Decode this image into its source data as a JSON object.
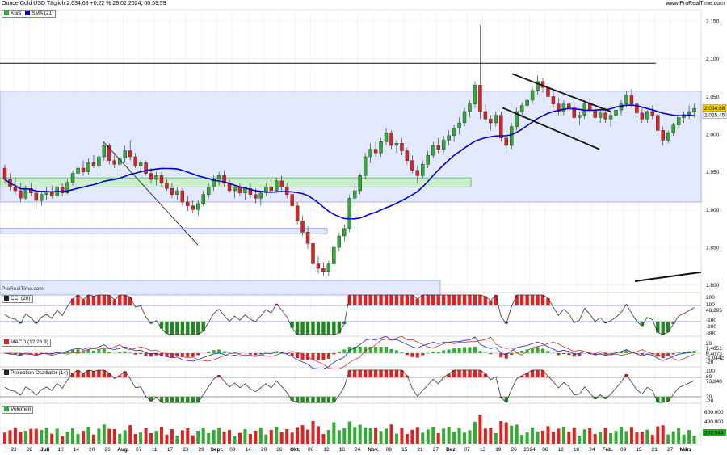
{
  "header": {
    "title": "Ounce Gold USD Täglich 2.034,68 +0,22 % 29.02.2024, 00:59:59",
    "site": "www.ProRealTime.com",
    "watermark": "ProRealTime.com"
  },
  "colors": {
    "up": "#33aa33",
    "down": "#dd2222",
    "sma": "#0000cc",
    "band_blue": "#e3e9ff",
    "band_green": "#cdeecd",
    "grid": "#e8e8e8"
  },
  "legend_main": [
    {
      "label": "Kurs",
      "color": "#33aa33"
    },
    {
      "label": "SMA (21)",
      "color": "#0000cc"
    }
  ],
  "cci": {
    "label": "CCI (20)",
    "ticks": [
      "200",
      "100",
      "-100",
      "-200",
      "-300"
    ],
    "value": "48,295"
  },
  "macd": {
    "label": "MACD (12 26 9)",
    "ticks": [
      "20",
      "0",
      "-20"
    ],
    "values": [
      "1,4651",
      "0,4073",
      "-1,0442"
    ]
  },
  "proj": {
    "label": "Projection Oszillator (14)",
    "ticks": [
      "100",
      "80",
      "20",
      "-20"
    ],
    "value": "73,840"
  },
  "volume": {
    "label": "Volumen",
    "ticks": [
      "600.000",
      "400.000",
      "200.000"
    ],
    "value": "203.944"
  },
  "price_badges": [
    "2.034,68",
    "2.025,45"
  ],
  "chart_data": {
    "type": "candlestick",
    "title": "Ounce Gold USD Täglich 2.034,68 +0,22 % 29.02.2024, 00:59:59",
    "y_ticks": [
      "2.150",
      "2.100",
      "2.050",
      "2.000",
      "1.950",
      "1.900",
      "1.850",
      "1.800"
    ],
    "ylim": [
      1790,
      2165
    ],
    "x_labels": [
      "23",
      "28",
      "Juli",
      "10",
      "14",
      "20",
      "26",
      "Aug.",
      "07",
      "11",
      "17",
      "23",
      "29",
      "Sept.",
      "08",
      "14",
      "20",
      "26",
      "Okt.",
      "06",
      "12",
      "18",
      "24",
      "Nov.",
      "09",
      "15",
      "21",
      "27",
      "Dez.",
      "07",
      "13",
      "19",
      "26",
      "2024",
      "08",
      "12",
      "18",
      "24",
      "Feb.",
      "09",
      "15",
      "21",
      "27",
      "März"
    ],
    "last_close": 2034.68,
    "sma_last": 2025.45,
    "candles": [
      [
        1955,
        1960,
        1935,
        1940
      ],
      [
        1940,
        1948,
        1925,
        1930
      ],
      [
        1930,
        1942,
        1920,
        1925
      ],
      [
        1925,
        1935,
        1910,
        1915
      ],
      [
        1915,
        1932,
        1912,
        1928
      ],
      [
        1928,
        1935,
        1918,
        1922
      ],
      [
        1922,
        1930,
        1900,
        1912
      ],
      [
        1912,
        1925,
        1905,
        1920
      ],
      [
        1920,
        1930,
        1912,
        1924
      ],
      [
        1924,
        1932,
        1915,
        1918
      ],
      [
        1918,
        1936,
        1915,
        1930
      ],
      [
        1930,
        1935,
        1918,
        1922
      ],
      [
        1922,
        1940,
        1920,
        1936
      ],
      [
        1936,
        1952,
        1932,
        1948
      ],
      [
        1948,
        1962,
        1942,
        1955
      ],
      [
        1955,
        1965,
        1945,
        1950
      ],
      [
        1950,
        1968,
        1946,
        1962
      ],
      [
        1962,
        1972,
        1955,
        1958
      ],
      [
        1958,
        1975,
        1952,
        1970
      ],
      [
        1970,
        1990,
        1965,
        1985
      ],
      [
        1985,
        1988,
        1960,
        1965
      ],
      [
        1965,
        1975,
        1955,
        1960
      ],
      [
        1960,
        1972,
        1950,
        1968
      ],
      [
        1968,
        1985,
        1962,
        1978
      ],
      [
        1978,
        1992,
        1965,
        1970
      ],
      [
        1970,
        1975,
        1955,
        1958
      ],
      [
        1958,
        1966,
        1950,
        1962
      ],
      [
        1962,
        1965,
        1945,
        1948
      ],
      [
        1948,
        1955,
        1935,
        1940
      ],
      [
        1940,
        1950,
        1932,
        1945
      ],
      [
        1945,
        1950,
        1930,
        1935
      ],
      [
        1935,
        1940,
        1925,
        1928
      ],
      [
        1928,
        1935,
        1915,
        1920
      ],
      [
        1920,
        1930,
        1912,
        1925
      ],
      [
        1925,
        1928,
        1905,
        1910
      ],
      [
        1910,
        1918,
        1898,
        1905
      ],
      [
        1905,
        1912,
        1895,
        1900
      ],
      [
        1900,
        1912,
        1892,
        1908
      ],
      [
        1908,
        1925,
        1905,
        1920
      ],
      [
        1920,
        1935,
        1915,
        1930
      ],
      [
        1930,
        1945,
        1925,
        1940
      ],
      [
        1940,
        1950,
        1932,
        1945
      ],
      [
        1945,
        1952,
        1930,
        1935
      ],
      [
        1935,
        1940,
        1922,
        1925
      ],
      [
        1925,
        1932,
        1915,
        1930
      ],
      [
        1930,
        1935,
        1918,
        1922
      ],
      [
        1922,
        1930,
        1912,
        1928
      ],
      [
        1928,
        1935,
        1915,
        1920
      ],
      [
        1920,
        1928,
        1908,
        1915
      ],
      [
        1915,
        1925,
        1905,
        1922
      ],
      [
        1922,
        1935,
        1918,
        1930
      ],
      [
        1930,
        1940,
        1920,
        1925
      ],
      [
        1925,
        1942,
        1922,
        1938
      ],
      [
        1938,
        1945,
        1925,
        1930
      ],
      [
        1930,
        1935,
        1915,
        1920
      ],
      [
        1920,
        1925,
        1900,
        1905
      ],
      [
        1905,
        1910,
        1880,
        1885
      ],
      [
        1885,
        1892,
        1865,
        1870
      ],
      [
        1870,
        1878,
        1848,
        1855
      ],
      [
        1855,
        1862,
        1820,
        1828
      ],
      [
        1828,
        1838,
        1815,
        1822
      ],
      [
        1822,
        1830,
        1812,
        1818
      ],
      [
        1818,
        1832,
        1812,
        1828
      ],
      [
        1828,
        1855,
        1825,
        1850
      ],
      [
        1850,
        1870,
        1845,
        1865
      ],
      [
        1865,
        1880,
        1858,
        1875
      ],
      [
        1875,
        1920,
        1870,
        1915
      ],
      [
        1915,
        1935,
        1905,
        1925
      ],
      [
        1925,
        1948,
        1920,
        1945
      ],
      [
        1945,
        1975,
        1940,
        1970
      ],
      [
        1970,
        1988,
        1962,
        1980
      ],
      [
        1980,
        1990,
        1970,
        1975
      ],
      [
        1975,
        1995,
        1970,
        1990
      ],
      [
        1990,
        2008,
        1985,
        2002
      ],
      [
        2002,
        2005,
        1980,
        1985
      ],
      [
        1985,
        1992,
        1975,
        1988
      ],
      [
        1988,
        1995,
        1972,
        1978
      ],
      [
        1978,
        1982,
        1960,
        1965
      ],
      [
        1965,
        1972,
        1948,
        1952
      ],
      [
        1952,
        1958,
        1935,
        1945
      ],
      [
        1945,
        1965,
        1942,
        1960
      ],
      [
        1960,
        1978,
        1955,
        1972
      ],
      [
        1972,
        1990,
        1968,
        1985
      ],
      [
        1985,
        1995,
        1975,
        1980
      ],
      [
        1980,
        1998,
        1975,
        1992
      ],
      [
        1992,
        2005,
        1985,
        1998
      ],
      [
        1998,
        2012,
        1990,
        2008
      ],
      [
        2008,
        2022,
        2000,
        2015
      ],
      [
        2015,
        2035,
        2010,
        2030
      ],
      [
        2030,
        2045,
        2022,
        2040
      ],
      [
        2040,
        2070,
        2035,
        2065
      ],
      [
        2065,
        2145,
        2020,
        2030
      ],
      [
        2030,
        2040,
        2015,
        2020
      ],
      [
        2020,
        2025,
        2005,
        2015
      ],
      [
        2015,
        2030,
        2010,
        2025
      ],
      [
        2025,
        2030,
        1990,
        1995
      ],
      [
        1995,
        2005,
        1975,
        1985
      ],
      [
        1985,
        2015,
        1980,
        2010
      ],
      [
        2010,
        2035,
        2005,
        2030
      ],
      [
        2030,
        2042,
        2022,
        2038
      ],
      [
        2038,
        2048,
        2030,
        2045
      ],
      [
        2045,
        2062,
        2040,
        2058
      ],
      [
        2058,
        2078,
        2052,
        2070
      ],
      [
        2070,
        2075,
        2055,
        2062
      ],
      [
        2062,
        2068,
        2045,
        2050
      ],
      [
        2050,
        2058,
        2035,
        2040
      ],
      [
        2040,
        2048,
        2025,
        2030
      ],
      [
        2030,
        2045,
        2025,
        2040
      ],
      [
        2040,
        2052,
        2030,
        2035
      ],
      [
        2035,
        2042,
        2018,
        2022
      ],
      [
        2022,
        2030,
        2012,
        2025
      ],
      [
        2025,
        2045,
        2020,
        2040
      ],
      [
        2040,
        2048,
        2028,
        2032
      ],
      [
        2032,
        2038,
        2018,
        2022
      ],
      [
        2022,
        2032,
        2015,
        2028
      ],
      [
        2028,
        2035,
        2015,
        2020
      ],
      [
        2020,
        2030,
        2010,
        2025
      ],
      [
        2025,
        2038,
        2020,
        2032
      ],
      [
        2032,
        2045,
        2025,
        2040
      ],
      [
        2040,
        2058,
        2035,
        2052
      ],
      [
        2052,
        2060,
        2035,
        2040
      ],
      [
        2040,
        2048,
        2022,
        2028
      ],
      [
        2028,
        2035,
        2015,
        2020
      ],
      [
        2020,
        2032,
        2015,
        2030
      ],
      [
        2030,
        2038,
        2020,
        2025
      ],
      [
        2025,
        2030,
        2000,
        2005
      ],
      [
        2005,
        2010,
        1985,
        1992
      ],
      [
        1992,
        2005,
        1988,
        2002
      ],
      [
        2002,
        2015,
        1998,
        2012
      ],
      [
        2012,
        2025,
        2008,
        2022
      ],
      [
        2022,
        2030,
        2015,
        2026
      ],
      [
        2026,
        2038,
        2020,
        2030
      ],
      [
        2030,
        2040,
        2022,
        2034
      ]
    ]
  }
}
